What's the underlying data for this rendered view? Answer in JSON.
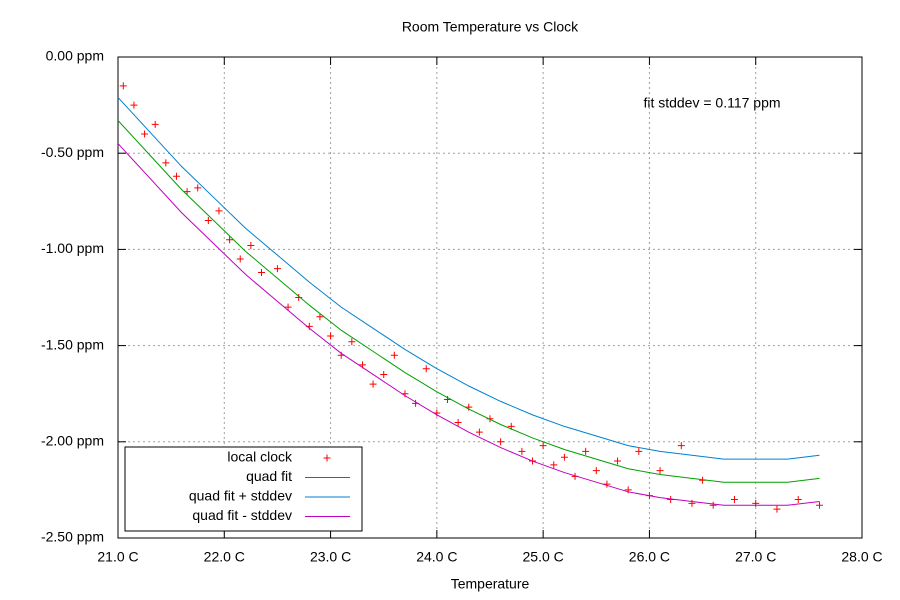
{
  "chart_data": {
    "type": "scatter",
    "title": "Room Temperature vs Clock",
    "x_label": "Temperature",
    "annotation": "fit stddev = 0.117 ppm",
    "xlim": [
      21,
      28
    ],
    "ylim": [
      -2.5,
      0
    ],
    "xticks": [
      {
        "value": 21,
        "label": "21.0 C"
      },
      {
        "value": 22,
        "label": "22.0 C"
      },
      {
        "value": 23,
        "label": "23.0 C"
      },
      {
        "value": 24,
        "label": "24.0 C"
      },
      {
        "value": 25,
        "label": "25.0 C"
      },
      {
        "value": 26,
        "label": "26.0 C"
      },
      {
        "value": 27,
        "label": "27.0 C"
      },
      {
        "value": 28,
        "label": "28.0 C"
      }
    ],
    "yticks": [
      {
        "value": 0,
        "label": "0.00 ppm"
      },
      {
        "value": -0.5,
        "label": "-0.50 ppm"
      },
      {
        "value": -1,
        "label": "-1.00 ppm"
      },
      {
        "value": -1.5,
        "label": "-1.50 ppm"
      },
      {
        "value": -2,
        "label": "-2.00 ppm"
      },
      {
        "value": -2.5,
        "label": "-2.50 ppm"
      }
    ],
    "grid": true,
    "legend": "lower left",
    "series": [
      {
        "name": "local clock",
        "type": "scatter",
        "color": "#ff0000",
        "x": [
          21.05,
          21.15,
          21.25,
          21.35,
          21.45,
          21.55,
          21.65,
          21.75,
          21.85,
          21.95,
          22.05,
          22.15,
          22.25,
          22.35,
          22.5,
          22.6,
          22.7,
          22.8,
          22.9,
          23.0,
          23.1,
          23.2,
          23.3,
          23.4,
          23.5,
          23.6,
          23.7,
          23.8,
          23.9,
          24.0,
          24.1,
          24.2,
          24.3,
          24.4,
          24.5,
          24.6,
          24.7,
          24.8,
          24.9,
          25.0,
          25.1,
          25.2,
          25.3,
          25.4,
          25.5,
          25.6,
          25.7,
          25.8,
          25.9,
          26.0,
          26.1,
          26.2,
          26.3,
          26.4,
          26.5,
          26.6,
          26.8,
          27.0,
          27.2,
          27.4,
          27.6
        ],
        "values": [
          -0.15,
          -0.25,
          -0.4,
          -0.35,
          -0.55,
          -0.62,
          -0.7,
          -0.68,
          -0.85,
          -0.8,
          -0.95,
          -1.05,
          -0.98,
          -1.12,
          -1.1,
          -1.3,
          -1.25,
          -1.4,
          -1.35,
          -1.45,
          -1.55,
          -1.48,
          -1.6,
          -1.7,
          -1.65,
          -1.55,
          -1.75,
          -1.8,
          -1.62,
          -1.85,
          -1.78,
          -1.9,
          -1.82,
          -1.95,
          -1.88,
          -2.0,
          -1.92,
          -2.05,
          -2.1,
          -2.02,
          -2.12,
          -2.08,
          -2.18,
          -2.05,
          -2.15,
          -2.22,
          -2.1,
          -2.25,
          -2.05,
          -2.28,
          -2.15,
          -2.3,
          -2.02,
          -2.32,
          -2.2,
          -2.33,
          -2.3,
          -2.32,
          -2.35,
          -2.3,
          -2.33
        ]
      },
      {
        "name": "quad fit",
        "type": "line",
        "color": "#00a000",
        "x": [
          21.0,
          21.3,
          21.6,
          21.9,
          22.2,
          22.5,
          22.8,
          23.1,
          23.4,
          23.7,
          24.0,
          24.3,
          24.6,
          24.9,
          25.2,
          25.5,
          25.8,
          26.1,
          26.4,
          26.7,
          27.0,
          27.3,
          27.6
        ],
        "values": [
          -0.33,
          -0.51,
          -0.69,
          -0.85,
          -1.01,
          -1.15,
          -1.29,
          -1.42,
          -1.53,
          -1.64,
          -1.74,
          -1.83,
          -1.91,
          -1.98,
          -2.04,
          -2.09,
          -2.14,
          -2.17,
          -2.19,
          -2.21,
          -2.21,
          -2.21,
          -2.19
        ]
      },
      {
        "name": "quad fit + stddev",
        "type": "line",
        "color": "#0080d0",
        "x": [
          21.0,
          21.3,
          21.6,
          21.9,
          22.2,
          22.5,
          22.8,
          23.1,
          23.4,
          23.7,
          24.0,
          24.3,
          24.6,
          24.9,
          25.2,
          25.5,
          25.8,
          26.1,
          26.4,
          26.7,
          27.0,
          27.3,
          27.6
        ],
        "values": [
          -0.21,
          -0.39,
          -0.57,
          -0.73,
          -0.89,
          -1.03,
          -1.17,
          -1.3,
          -1.41,
          -1.52,
          -1.62,
          -1.71,
          -1.79,
          -1.86,
          -1.92,
          -1.97,
          -2.02,
          -2.05,
          -2.07,
          -2.09,
          -2.09,
          -2.09,
          -2.07
        ]
      },
      {
        "name": "quad fit - stddev",
        "type": "line",
        "color": "#c000c0",
        "x": [
          21.0,
          21.3,
          21.6,
          21.9,
          22.2,
          22.5,
          22.8,
          23.1,
          23.4,
          23.7,
          24.0,
          24.3,
          24.6,
          24.9,
          25.2,
          25.5,
          25.8,
          26.1,
          26.4,
          26.7,
          27.0,
          27.3,
          27.6
        ],
        "values": [
          -0.45,
          -0.63,
          -0.81,
          -0.97,
          -1.13,
          -1.27,
          -1.41,
          -1.54,
          -1.65,
          -1.76,
          -1.86,
          -1.95,
          -2.03,
          -2.1,
          -2.16,
          -2.21,
          -2.26,
          -2.29,
          -2.31,
          -2.33,
          -2.33,
          -2.33,
          -2.31
        ]
      }
    ]
  }
}
